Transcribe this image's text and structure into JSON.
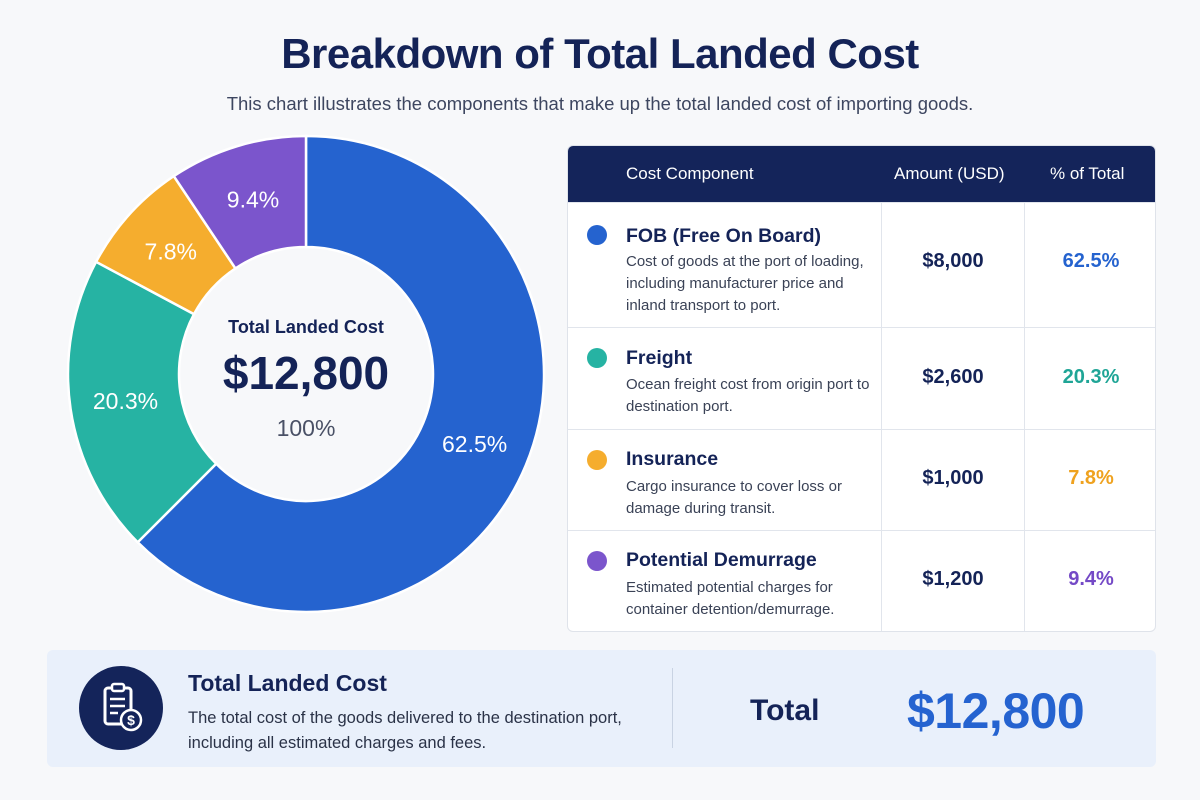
{
  "header": {
    "title": "Breakdown of Total Landed Cost",
    "subtitle": "This chart illustrates the components that make up the total landed cost of importing goods."
  },
  "chart_data": {
    "type": "pie",
    "donut": true,
    "categories": [
      "FOB (Free On Board)",
      "Freight",
      "Insurance",
      "Potential Demurrage"
    ],
    "values": [
      8000,
      2600,
      1000,
      1200
    ],
    "percent_labels": [
      "62.5%",
      "20.3%",
      "7.8%",
      "9.4%"
    ],
    "colors": [
      "#2563cf",
      "#26b3a3",
      "#f5ad2e",
      "#7b55cc"
    ],
    "center": {
      "label": "Total Landed Cost",
      "value": "$12,800",
      "percent": "100%"
    }
  },
  "table": {
    "headers": {
      "component": "Cost Component",
      "amount": "Amount (USD)",
      "percent": "% of Total"
    },
    "rows": [
      {
        "name": "FOB (Free On Board)",
        "desc": "Cost of goods at the port of loading, including manufacturer price and inland transport to port.",
        "amount": "$8,000",
        "percent": "62.5%",
        "color": "#2563cf",
        "pct_color": "#2563cf"
      },
      {
        "name": "Freight",
        "desc": "Ocean freight cost from origin port to destination port.",
        "amount": "$2,600",
        "percent": "20.3%",
        "color": "#26b3a3",
        "pct_color": "#1fa596"
      },
      {
        "name": "Insurance",
        "desc": "Cargo insurance to cover loss or damage during transit.",
        "amount": "$1,000",
        "percent": "7.8%",
        "color": "#f5ad2e",
        "pct_color": "#efa21f"
      },
      {
        "name": "Potential Demurrage",
        "desc": "Estimated potential charges for container detention/demurrage.",
        "amount": "$1,200",
        "percent": "9.4%",
        "color": "#7b55cc",
        "pct_color": "#7449c6"
      }
    ]
  },
  "summary": {
    "icon": "invoice-dollar-icon",
    "title": "Total Landed Cost",
    "desc": "The total cost of the goods delivered to the destination port, including all estimated charges and fees.",
    "total_label": "Total",
    "total_value": "$12,800"
  }
}
